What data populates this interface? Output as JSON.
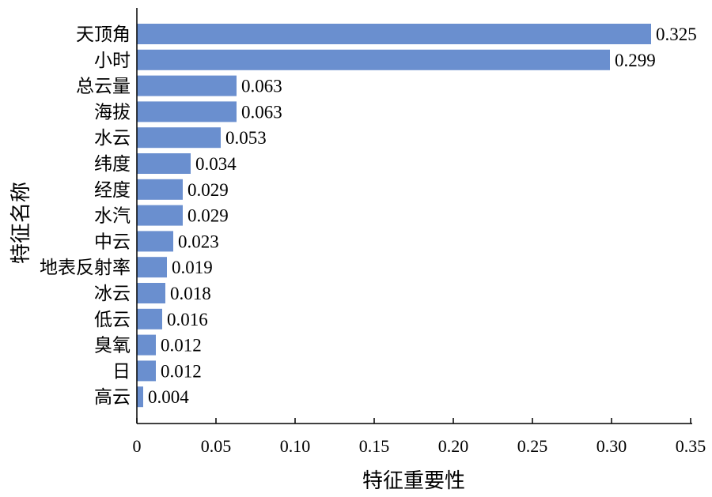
{
  "chart_data": {
    "type": "bar",
    "orientation": "horizontal",
    "categories": [
      "天顶角",
      "小时",
      "总云量",
      "海拔",
      "水云",
      "纬度",
      "经度",
      "水汽",
      "中云",
      "地表反射率",
      "冰云",
      "低云",
      "臭氧",
      "日",
      "高云"
    ],
    "values": [
      0.325,
      0.299,
      0.063,
      0.063,
      0.053,
      0.034,
      0.029,
      0.029,
      0.023,
      0.019,
      0.018,
      0.016,
      0.012,
      0.012,
      0.004
    ],
    "value_labels": [
      "0.325",
      "0.299",
      "0.063",
      "0.063",
      "0.053",
      "0.034",
      "0.029",
      "0.029",
      "0.023",
      "0.019",
      "0.018",
      "0.016",
      "0.012",
      "0.012",
      "0.004"
    ],
    "xlabel": "特征重要性",
    "ylabel": "特征名称",
    "xlim": [
      0,
      0.35
    ],
    "xticks": [
      0,
      0.05,
      0.1,
      0.15,
      0.2,
      0.25,
      0.3,
      0.35
    ],
    "xtick_labels": [
      "0",
      "0.05",
      "0.10",
      "0.15",
      "0.20",
      "0.25",
      "0.30",
      "0.35"
    ],
    "grid": false,
    "bar_color": "#6a8fcf"
  }
}
